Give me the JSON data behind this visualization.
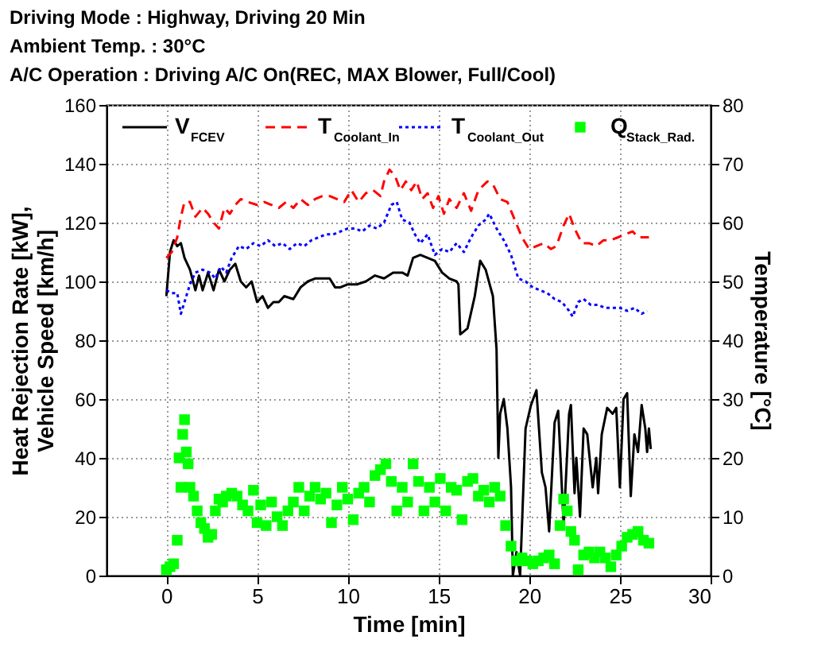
{
  "chart_data": {
    "type": "line",
    "title": "Driving Mode : Highway, Driving 20 Min\nAmbient Temp. : 30°C\nA/C Operation : Driving A/C On(REC, MAX Blower, Full/Cool)",
    "xlabel": "Time [min]",
    "ylabel": "Heat Rejection Rate [kW],\nVehicle Speed [km/h]",
    "y2label": "Temperature [°C]",
    "xlim": [
      -3.3,
      30
    ],
    "xticks": [
      0,
      5,
      10,
      15,
      20,
      25,
      30
    ],
    "ylim": [
      0,
      160
    ],
    "yticks": [
      0,
      20,
      40,
      60,
      80,
      100,
      120,
      140,
      160
    ],
    "y2lim": [
      0,
      80
    ],
    "y2ticks": [
      0,
      10,
      20,
      30,
      40,
      50,
      60,
      70,
      80
    ],
    "grid": true,
    "legend": "top",
    "series": [
      {
        "name": "V$_{FCEV}$",
        "color": "#000000",
        "line_style": "solid",
        "x": [
          0,
          0.2,
          0.4,
          0.6,
          0.8,
          1.0,
          1.3,
          1.6,
          1.8,
          2.0,
          2.3,
          2.6,
          2.9,
          3.2,
          3.5,
          3.8,
          4.1,
          4.4,
          4.7,
          5.0,
          5.3,
          5.6,
          5.9,
          6.2,
          6.5,
          7.0,
          7.4,
          7.8,
          8.2,
          8.6,
          9.0,
          9.3,
          9.6,
          10.0,
          10.5,
          11.0,
          11.5,
          12.0,
          12.5,
          13.0,
          13.3,
          13.6,
          14.0,
          14.4,
          14.8,
          15.2,
          15.6,
          16.0,
          16.1,
          16.2,
          16.6,
          17.0,
          17.3,
          17.6,
          18.0,
          18.2,
          18.3,
          18.4,
          18.6,
          18.8,
          19.0,
          19.1,
          19.3,
          19.5,
          19.8,
          20.1,
          20.4,
          20.7,
          20.9,
          21.1,
          21.4,
          21.6,
          21.9,
          22.2,
          22.3,
          22.5,
          22.6,
          22.8,
          23.0,
          23.2,
          23.5,
          23.7,
          23.8,
          24.0,
          24.3,
          24.6,
          24.8,
          25.0,
          25.2,
          25.4,
          25.6,
          25.8,
          26.0,
          26.2,
          26.4,
          26.5,
          26.6,
          26.7
        ],
        "values": [
          95,
          110,
          114,
          112,
          113,
          108,
          104,
          97,
          102,
          97,
          103,
          97,
          104,
          100,
          104,
          106,
          100,
          98,
          100,
          93,
          95,
          91,
          93,
          93,
          95,
          94,
          98,
          100,
          101,
          101,
          101,
          98,
          98,
          99,
          99,
          100,
          102,
          101,
          103,
          103,
          102,
          108,
          109,
          108,
          107,
          103,
          101,
          100,
          99,
          82,
          84,
          95,
          107,
          104,
          95,
          77,
          40,
          55,
          60,
          50,
          30,
          0,
          8,
          0,
          50,
          58,
          63,
          35,
          30,
          15,
          52,
          56,
          17,
          55,
          58,
          28,
          40,
          20,
          50,
          48,
          30,
          40,
          28,
          48,
          57,
          55,
          57,
          30,
          60,
          62,
          27,
          48,
          42,
          58,
          50,
          42,
          50,
          43
        ]
      },
      {
        "name": "T$_{Coolant_In}$",
        "color": "#ff0000",
        "line_style": "dashed",
        "axis": "y2",
        "x": [
          0,
          0.3,
          0.6,
          0.8,
          1.0,
          1.3,
          1.6,
          2.0,
          2.3,
          2.6,
          2.9,
          3.2,
          3.5,
          3.8,
          4.1,
          4.5,
          5.0,
          5.4,
          5.8,
          6.2,
          6.6,
          7.0,
          7.4,
          7.8,
          8.2,
          8.6,
          9.0,
          9.4,
          9.8,
          10.2,
          10.6,
          11.0,
          11.4,
          11.8,
          12.0,
          12.3,
          12.6,
          12.9,
          13.2,
          13.5,
          13.8,
          14.1,
          14.4,
          14.7,
          15.0,
          15.3,
          15.6,
          16.0,
          16.4,
          16.8,
          17.2,
          17.7,
          18.0,
          18.4,
          18.8,
          19.2,
          19.6,
          20.0,
          20.4,
          20.8,
          21.2,
          21.5,
          21.9,
          22.2,
          22.5,
          22.9,
          23.3,
          23.7,
          24.1,
          24.5,
          24.9,
          25.3,
          25.7,
          26.0,
          26.6
        ],
        "values": [
          54,
          55,
          57.5,
          61,
          63.5,
          63.5,
          61,
          62.5,
          61.5,
          60,
          59,
          62.5,
          61.5,
          63,
          64,
          63.5,
          63,
          63.5,
          63,
          62.5,
          63.5,
          62.5,
          64,
          63,
          64,
          64.5,
          64.5,
          64,
          63.5,
          65.5,
          63.5,
          65,
          65.5,
          64.5,
          67,
          69,
          68,
          65.5,
          67,
          65.5,
          67,
          64,
          65,
          62.5,
          64.5,
          61.5,
          64,
          62.5,
          65,
          62,
          65.5,
          67,
          66.5,
          64,
          63.5,
          60.5,
          57.5,
          55.5,
          56,
          56.5,
          55.5,
          56,
          59.5,
          61.5,
          59,
          56.5,
          56.5,
          56,
          57,
          57,
          57.5,
          58,
          58.5,
          57.5,
          57.5
        ]
      },
      {
        "name": "T$_{Coolant_Out}$",
        "color": "#0000ff",
        "line_style": "dotted",
        "axis": "y2",
        "x": [
          0,
          0.3,
          0.6,
          0.8,
          1.0,
          1.3,
          1.6,
          2.0,
          2.4,
          2.7,
          3.0,
          3.3,
          3.6,
          4.0,
          4.4,
          4.8,
          5.2,
          5.6,
          6.0,
          6.4,
          6.8,
          7.2,
          7.6,
          8.0,
          8.4,
          8.8,
          9.2,
          9.6,
          10.0,
          10.4,
          10.8,
          11.2,
          11.6,
          12.0,
          12.4,
          12.7,
          13.0,
          13.4,
          13.7,
          14.0,
          14.4,
          14.8,
          15.2,
          15.6,
          16.0,
          16.4,
          16.8,
          17.2,
          17.6,
          17.8,
          18.2,
          18.6,
          19.0,
          19.4,
          19.8,
          20.2,
          20.6,
          21.0,
          21.4,
          21.8,
          22.2,
          22.4,
          22.7,
          23.0,
          23.4,
          23.8,
          24.2,
          24.6,
          25.0,
          25.4,
          25.8,
          26.2,
          26.5
        ],
        "values": [
          48.5,
          48,
          48,
          44.5,
          46.5,
          49.5,
          51.5,
          52,
          51.5,
          50.5,
          52.5,
          51.5,
          54,
          56,
          55.5,
          56.5,
          56,
          57,
          56,
          56.5,
          55.5,
          56.5,
          56,
          57,
          57.5,
          58,
          58,
          58.5,
          59,
          59,
          58.5,
          59.5,
          59,
          60,
          63,
          63.5,
          60.5,
          60,
          58,
          56.5,
          58,
          54.5,
          55.5,
          55,
          56.5,
          55,
          57.5,
          59.5,
          60.5,
          61.5,
          59,
          57,
          54.5,
          50.5,
          50,
          49,
          48.5,
          48,
          47,
          46.5,
          45,
          44,
          46.5,
          47,
          46,
          46,
          45.5,
          45.5,
          45.5,
          45,
          45.5,
          44.5,
          45
        ]
      },
      {
        "name": "Q$_{Stack_Rad.}$",
        "color": "#00ff00",
        "type": "scatter",
        "marker": "square",
        "x": [
          0,
          0.2,
          0.4,
          0.6,
          0.7,
          0.8,
          0.9,
          1.0,
          1.1,
          1.2,
          1.3,
          1.5,
          1.7,
          1.9,
          2.1,
          2.3,
          2.5,
          2.7,
          2.9,
          3.1,
          3.3,
          3.6,
          3.9,
          4.2,
          4.5,
          4.8,
          5.0,
          5.2,
          5.5,
          5.8,
          6.1,
          6.4,
          6.7,
          7.0,
          7.3,
          7.6,
          7.9,
          8.2,
          8.5,
          8.8,
          9.1,
          9.4,
          9.7,
          10.0,
          10.3,
          10.6,
          10.9,
          11.2,
          11.5,
          11.8,
          12.1,
          12.4,
          12.7,
          13.0,
          13.3,
          13.6,
          13.9,
          14.2,
          14.5,
          14.8,
          15.1,
          15.4,
          15.7,
          16.0,
          16.3,
          16.6,
          16.9,
          17.2,
          17.5,
          17.8,
          18.1,
          18.4,
          18.7,
          19.0,
          19.3,
          19.6,
          19.9,
          20.2,
          20.5,
          20.8,
          21.1,
          21.4,
          21.7,
          21.9,
          22.1,
          22.3,
          22.5,
          22.7,
          23.0,
          23.3,
          23.6,
          23.9,
          24.2,
          24.5,
          24.8,
          25.1,
          25.4,
          25.7,
          26.0,
          26.3,
          26.6
        ],
        "values": [
          2,
          3,
          4,
          12,
          40,
          30,
          48,
          53,
          42,
          38,
          30,
          27,
          22,
          18,
          16,
          13,
          14,
          22,
          26,
          25,
          27,
          28,
          27,
          24,
          22,
          29,
          18,
          24,
          17,
          25,
          20,
          17,
          22,
          25,
          30,
          22,
          27,
          30,
          26,
          28,
          18,
          24,
          30,
          26,
          19,
          28,
          30,
          25,
          34,
          36,
          38,
          32,
          22,
          30,
          25,
          38,
          32,
          22,
          30,
          25,
          33,
          22,
          30,
          29,
          19,
          32,
          33,
          27,
          29,
          25,
          30,
          27,
          17,
          10,
          5,
          6,
          5,
          4,
          5,
          6,
          7,
          4,
          17,
          26,
          22,
          15,
          12,
          2,
          7,
          8,
          6,
          8,
          6,
          3,
          7,
          10,
          13,
          14,
          15,
          12,
          11
        ]
      }
    ]
  }
}
